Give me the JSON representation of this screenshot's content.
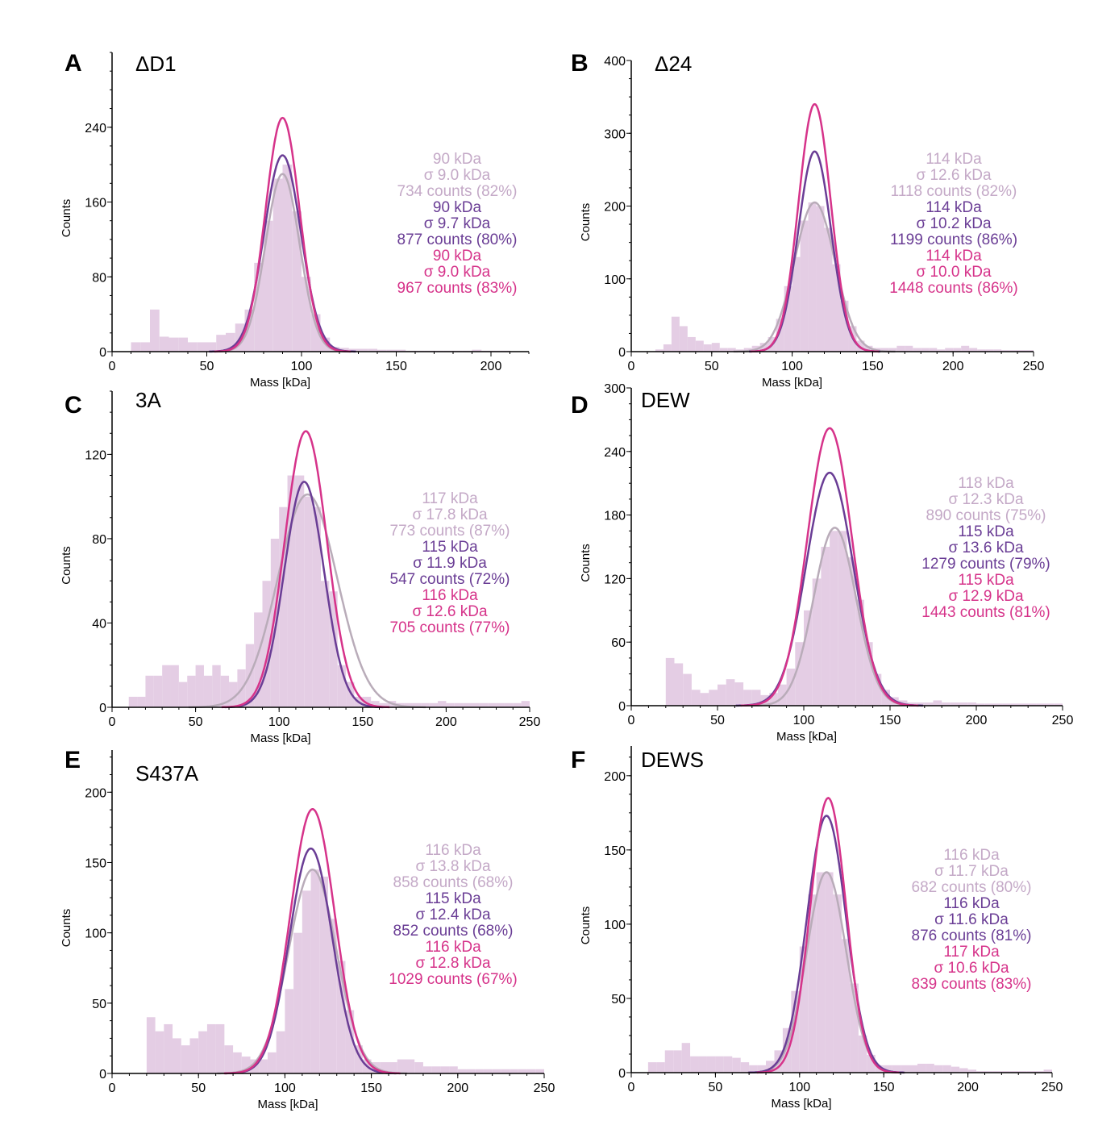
{
  "colors": {
    "light": "#c4a9c7",
    "light_fill": "#e4cde4",
    "light_curve": "#b9acb9",
    "purple": "#6a3d95",
    "purple_fill": "#9b82bd",
    "pink": "#d6338a",
    "pink_fill": "#d660a8"
  },
  "chart_data": [
    {
      "type": "bar",
      "panel": "A",
      "title": "ΔD1",
      "xlabel": "Mass [kDa]",
      "ylabel": "Counts",
      "xlim": [
        0,
        220
      ],
      "ylim": [
        0,
        320
      ],
      "xticks": [
        0,
        50,
        100,
        150,
        200
      ],
      "yticks": [
        0,
        80,
        160,
        240
      ],
      "bin_start": 10,
      "bin_width": 5,
      "histogram": [
        10,
        10,
        45,
        16,
        15,
        15,
        10,
        10,
        10,
        18,
        20,
        30,
        45,
        95,
        140,
        185,
        200,
        150,
        80,
        40,
        15,
        5,
        4,
        3,
        3,
        3,
        2,
        2,
        2,
        1,
        1,
        1,
        1,
        1,
        1,
        1,
        2,
        1,
        1,
        1,
        0,
        0
      ],
      "fits": [
        {
          "series": "light",
          "mean": 90,
          "sigma": 9.0,
          "peak": 190,
          "lines": [
            "90 kDa",
            "σ 9.0 kDa",
            "734 counts (82%)"
          ]
        },
        {
          "series": "purple",
          "mean": 90,
          "sigma": 9.7,
          "peak": 210,
          "lines": [
            "90 kDa",
            "σ 9.7 kDa",
            "877 counts (80%)"
          ]
        },
        {
          "series": "pink",
          "mean": 90,
          "sigma": 9.0,
          "peak": 250,
          "lines": [
            "90 kDa",
            "σ 9.0 kDa",
            "967 counts (83%)"
          ]
        }
      ]
    },
    {
      "type": "bar",
      "panel": "B",
      "title": "Δ24",
      "xlabel": "Mass [kDa]",
      "ylabel": "Counts",
      "xlim": [
        0,
        250
      ],
      "ylim": [
        0,
        400
      ],
      "xticks": [
        0,
        50,
        100,
        150,
        200,
        250
      ],
      "yticks": [
        0,
        100,
        200,
        300,
        400
      ],
      "bin_start": 10,
      "bin_width": 5,
      "histogram": [
        0,
        3,
        10,
        48,
        35,
        20,
        15,
        10,
        12,
        5,
        5,
        3,
        5,
        8,
        12,
        20,
        45,
        90,
        130,
        180,
        205,
        200,
        170,
        120,
        70,
        35,
        15,
        8,
        5,
        5,
        5,
        8,
        8,
        5,
        5,
        5,
        3,
        5,
        5,
        8,
        5,
        3,
        3,
        3,
        2,
        2,
        2,
        2
      ],
      "fits": [
        {
          "series": "light",
          "mean": 114,
          "sigma": 12.6,
          "peak": 205,
          "lines": [
            "114 kDa",
            "σ 12.6 kDa",
            "1118 counts (82%)"
          ]
        },
        {
          "series": "purple",
          "mean": 114,
          "sigma": 10.2,
          "peak": 275,
          "lines": [
            "114 kDa",
            "σ 10.2 kDa",
            "1199 counts (86%)"
          ]
        },
        {
          "series": "pink",
          "mean": 114,
          "sigma": 10.0,
          "peak": 340,
          "lines": [
            "114 kDa",
            "σ 10.0 kDa",
            "1448 counts (86%)"
          ]
        }
      ]
    },
    {
      "type": "bar",
      "panel": "C",
      "title": "3A",
      "xlabel": "Mass [kDa]",
      "ylabel": "Counts",
      "xlim": [
        0,
        250
      ],
      "ylim": [
        0,
        150
      ],
      "xticks": [
        0,
        50,
        100,
        150,
        200,
        250
      ],
      "yticks": [
        0,
        40,
        80,
        120
      ],
      "bin_start": 10,
      "bin_width": 5,
      "histogram": [
        5,
        5,
        15,
        15,
        20,
        20,
        12,
        15,
        20,
        15,
        20,
        15,
        12,
        18,
        30,
        45,
        60,
        80,
        95,
        110,
        110,
        100,
        95,
        60,
        55,
        20,
        12,
        5,
        5,
        3,
        2,
        3,
        2,
        2,
        2,
        2,
        2,
        3,
        2,
        2,
        2,
        2,
        2,
        2,
        2,
        2,
        2,
        3
      ],
      "fits": [
        {
          "series": "light",
          "mean": 117,
          "sigma": 17.8,
          "peak": 101,
          "lines": [
            "117 kDa",
            "σ 17.8 kDa",
            "773 counts (87%)"
          ]
        },
        {
          "series": "purple",
          "mean": 115,
          "sigma": 11.9,
          "peak": 107,
          "lines": [
            "115 kDa",
            "σ 11.9 kDa",
            "547 counts (72%)"
          ]
        },
        {
          "series": "pink",
          "mean": 116,
          "sigma": 12.6,
          "peak": 131,
          "lines": [
            "116 kDa",
            "σ 12.6 kDa",
            "705 counts (77%)"
          ]
        }
      ]
    },
    {
      "type": "bar",
      "panel": "D",
      "title": "DEW",
      "xlabel": "Mass [kDa]",
      "ylabel": "Counts",
      "xlim": [
        0,
        250
      ],
      "ylim": [
        0,
        300
      ],
      "xticks": [
        0,
        50,
        100,
        150,
        200,
        250
      ],
      "yticks": [
        0,
        60,
        120,
        180,
        240,
        300
      ],
      "bin_start": 10,
      "bin_width": 5,
      "histogram": [
        0,
        0,
        45,
        40,
        30,
        15,
        12,
        15,
        20,
        25,
        22,
        15,
        15,
        10,
        12,
        20,
        35,
        60,
        90,
        120,
        150,
        165,
        165,
        140,
        100,
        60,
        30,
        15,
        8,
        5,
        3,
        3,
        3,
        5,
        3,
        3,
        3,
        3,
        2,
        2,
        2,
        2,
        2,
        2,
        2,
        2,
        2,
        2
      ],
      "fits": [
        {
          "series": "light",
          "mean": 118,
          "sigma": 12.3,
          "peak": 168,
          "lines": [
            "118 kDa",
            "σ 12.3 kDa",
            "890 counts (75%)"
          ]
        },
        {
          "series": "purple",
          "mean": 115,
          "sigma": 13.6,
          "peak": 220,
          "lines": [
            "115 kDa",
            "σ 13.6 kDa",
            "1279 counts (79%)"
          ]
        },
        {
          "series": "pink",
          "mean": 115,
          "sigma": 12.9,
          "peak": 262,
          "lines": [
            "115 kDa",
            "σ 12.9 kDa",
            "1443 counts (81%)"
          ]
        }
      ]
    },
    {
      "type": "bar",
      "panel": "E",
      "title": "S437A",
      "xlabel": "Mass [kDa]",
      "ylabel": "Counts",
      "xlim": [
        0,
        250
      ],
      "ylim": [
        0,
        230
      ],
      "xticks": [
        0,
        50,
        100,
        150,
        200,
        250
      ],
      "yticks": [
        0,
        50,
        100,
        150,
        200
      ],
      "bin_start": 10,
      "bin_width": 5,
      "histogram": [
        0,
        0,
        40,
        30,
        35,
        25,
        20,
        25,
        30,
        35,
        35,
        20,
        15,
        12,
        10,
        10,
        15,
        30,
        60,
        100,
        130,
        145,
        140,
        110,
        80,
        45,
        20,
        10,
        8,
        8,
        8,
        10,
        10,
        8,
        5,
        5,
        5,
        5,
        3,
        3,
        3,
        3,
        3,
        3,
        3,
        3,
        3,
        3
      ],
      "fits": [
        {
          "series": "light",
          "mean": 116,
          "sigma": 13.8,
          "peak": 145,
          "lines": [
            "116 kDa",
            "σ 13.8 kDa",
            "858 counts (68%)"
          ]
        },
        {
          "series": "purple",
          "mean": 115,
          "sigma": 12.4,
          "peak": 160,
          "lines": [
            "115 kDa",
            "σ 12.4 kDa",
            "852 counts (68%)"
          ]
        },
        {
          "series": "pink",
          "mean": 116,
          "sigma": 12.8,
          "peak": 188,
          "lines": [
            "116 kDa",
            "σ 12.8 kDa",
            "1029 counts (67%)"
          ]
        }
      ]
    },
    {
      "type": "bar",
      "panel": "F",
      "title": "DEWS",
      "xlabel": "Mass [kDa]",
      "ylabel": "Counts",
      "xlim": [
        0,
        250
      ],
      "ylim": [
        0,
        220
      ],
      "xticks": [
        0,
        50,
        100,
        150,
        200,
        250
      ],
      "yticks": [
        0,
        50,
        100,
        150,
        200
      ],
      "bin_start": 10,
      "bin_width": 5,
      "histogram": [
        7,
        7,
        15,
        15,
        20,
        11,
        11,
        11,
        11,
        11,
        10,
        7,
        5,
        5,
        8,
        15,
        30,
        55,
        85,
        120,
        135,
        135,
        120,
        90,
        60,
        25,
        12,
        5,
        5,
        5,
        5,
        5,
        6,
        6,
        5,
        5,
        4,
        3,
        2,
        1,
        1,
        1,
        1,
        1,
        1,
        1,
        1,
        2
      ],
      "fits": [
        {
          "series": "light",
          "mean": 116,
          "sigma": 11.7,
          "peak": 135,
          "lines": [
            "116 kDa",
            "σ 11.7 kDa",
            "682 counts (80%)"
          ]
        },
        {
          "series": "purple",
          "mean": 116,
          "sigma": 11.6,
          "peak": 173,
          "lines": [
            "116 kDa",
            "σ 11.6 kDa",
            "876 counts (81%)"
          ]
        },
        {
          "series": "pink",
          "mean": 117,
          "sigma": 10.6,
          "peak": 185,
          "lines": [
            "117 kDa",
            "σ 10.6 kDa",
            "839 counts (83%)"
          ]
        }
      ]
    }
  ]
}
